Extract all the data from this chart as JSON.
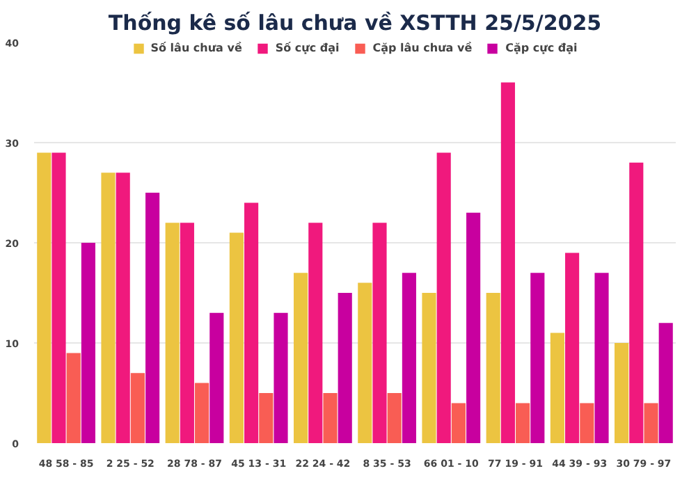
{
  "chart_data": {
    "type": "bar",
    "title": "Thống kê số lâu chưa về XSTTH 25/5/2025",
    "categories": [
      "48 58 - 85",
      "2 25 - 52",
      "28 78 - 87",
      "45 13 - 31",
      "22 24 - 42",
      "8 35 - 53",
      "66 01 - 10",
      "77 19 - 91",
      "44 39 - 93",
      "30 79 - 97"
    ],
    "series": [
      {
        "name": "Số lâu chưa về",
        "color": "#ecc441",
        "values": [
          29,
          27,
          22,
          21,
          17,
          16,
          15,
          15,
          11,
          10
        ]
      },
      {
        "name": "Số cực đại",
        "color": "#f0197d",
        "values": [
          29,
          27,
          22,
          24,
          22,
          22,
          29,
          36,
          19,
          28
        ]
      },
      {
        "name": "Cặp lâu chưa về",
        "color": "#f95d54",
        "values": [
          9,
          7,
          6,
          5,
          5,
          5,
          4,
          4,
          4,
          4
        ]
      },
      {
        "name": "Cặp cực đại",
        "color": "#c8009f",
        "values": [
          20,
          25,
          13,
          13,
          15,
          17,
          23,
          17,
          17,
          12
        ]
      }
    ],
    "ylim": [
      0,
      40
    ],
    "yticks": [
      0,
      10,
      20,
      30,
      40
    ],
    "grid": "y",
    "legend": "top"
  }
}
